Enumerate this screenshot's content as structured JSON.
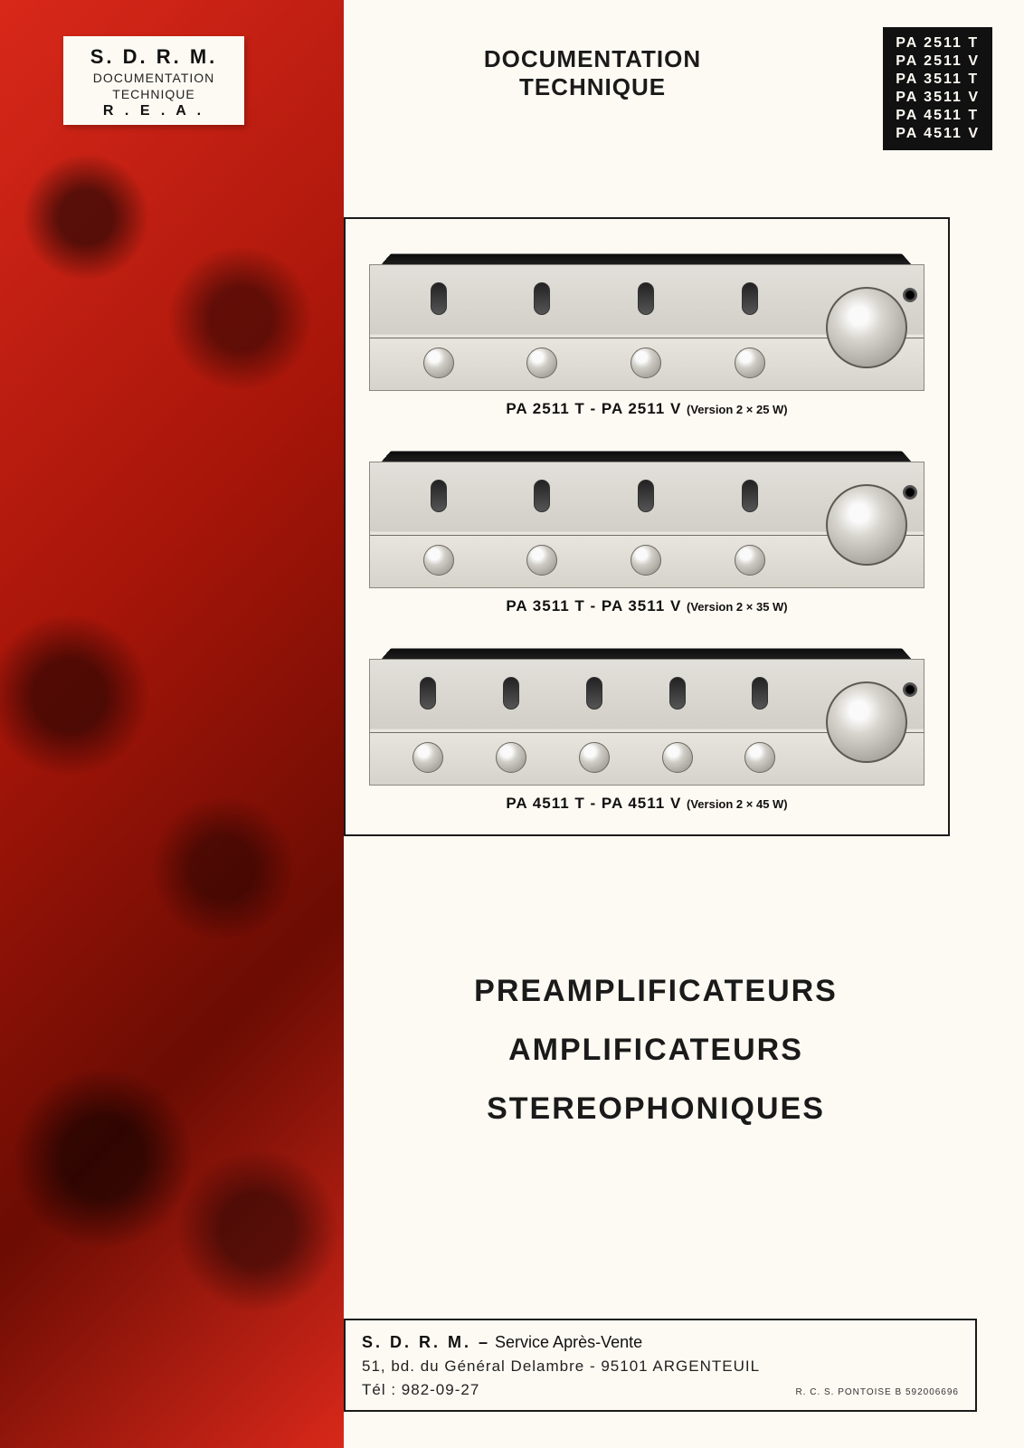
{
  "colors": {
    "paper": "#fdfaf3",
    "ink": "#1a1a1a",
    "black_box": "#111111",
    "red_tint_main": "#d8281a",
    "red_tint_dark": "#6b0c03",
    "amp_face_light": "#e2e0da",
    "amp_face_shadow": "#8d8a82"
  },
  "typography": {
    "heading_fontsize_pt": 20,
    "body_fontsize_pt": 13,
    "big_title_fontsize_pt": 26,
    "caption_fontsize_pt": 12,
    "font_family": "Helvetica"
  },
  "sdrm_box": {
    "title": "S. D. R. M.",
    "line1": "DOCUMENTATION",
    "line2": "TECHNIQUE",
    "line3": "R . E . A ."
  },
  "heading": {
    "line1": "DOCUMENTATION",
    "line2": "TECHNIQUE"
  },
  "model_box": [
    "PA 2511 T",
    "PA 2511 V",
    "PA 3511 T",
    "PA 3511 V",
    "PA 4511 T",
    "PA 4511 V"
  ],
  "products": [
    {
      "model": "PA 2511 T - PA 2511 V",
      "version": "(Version 2 × 25 W)",
      "switches": 4,
      "knobs": 4
    },
    {
      "model": "PA 3511 T - PA 3511 V",
      "version": "(Version 2 × 35 W)",
      "switches": 4,
      "knobs": 4
    },
    {
      "model": "PA 4511 T - PA 4511 V",
      "version": "(Version 2 × 45 W)",
      "switches": 5,
      "knobs": 5
    }
  ],
  "big_titles": [
    "PREAMPLIFICATEURS",
    "AMPLIFICATEURS",
    "STEREOPHONIQUES"
  ],
  "footer": {
    "brand": "S. D. R. M. –",
    "service": " Service Après-Vente",
    "address": "51, bd. du Général Delambre - 95101  ARGENTEUIL",
    "tel": "Tél : 982-09-27",
    "rcs": "R. C. S. PONTOISE B 592006696"
  }
}
